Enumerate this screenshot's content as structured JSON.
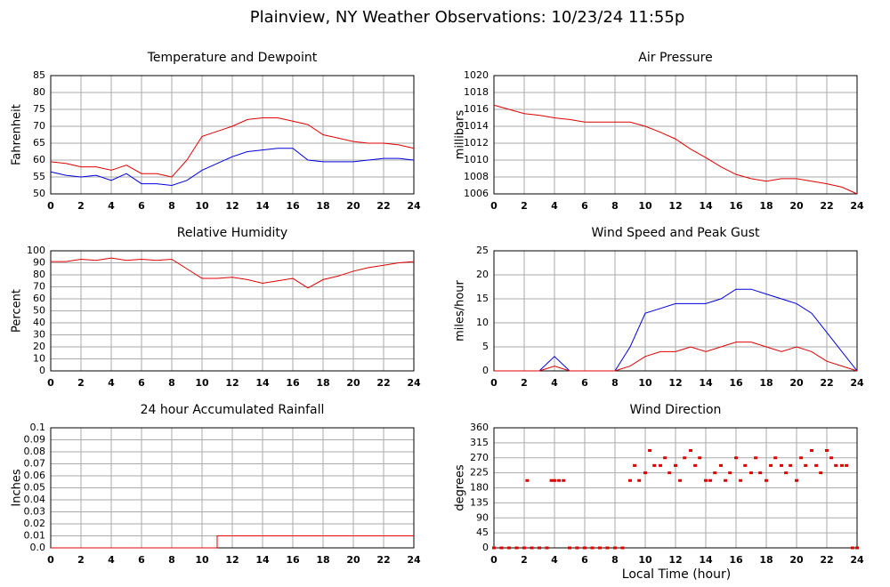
{
  "title": "Plainview, NY Weather Observations: 10/23/24 11:55p",
  "x_label": "Local Time (hour)",
  "chart_data": [
    {
      "type": "line",
      "title": "Temperature and Dewpoint",
      "y_label": "Fahrenheit",
      "grid": true,
      "x": [
        0,
        1,
        2,
        3,
        4,
        5,
        6,
        7,
        8,
        9,
        10,
        11,
        12,
        13,
        14,
        15,
        16,
        17,
        18,
        19,
        20,
        21,
        22,
        23,
        24
      ],
      "series": [
        {
          "color": "#e00000",
          "values": [
            59.5,
            59,
            58,
            58,
            57,
            58.5,
            56,
            56,
            55,
            60,
            67,
            68.5,
            70,
            72,
            72.5,
            72.5,
            71.5,
            70.5,
            67.5,
            66.5,
            65.5,
            65,
            65,
            64.5,
            63.5
          ]
        },
        {
          "color": "#0000e0",
          "values": [
            56.5,
            55.5,
            55,
            55.5,
            54,
            56,
            53,
            53,
            52.5,
            54,
            57,
            59,
            61,
            62.5,
            63,
            63.5,
            63.5,
            60,
            59.5,
            59.5,
            59.5,
            60,
            60.5,
            60.5,
            60
          ]
        }
      ],
      "xlim": [
        0,
        24
      ],
      "xticks": [
        0,
        2,
        4,
        6,
        8,
        10,
        12,
        14,
        16,
        18,
        20,
        22,
        24
      ],
      "ylim": [
        50,
        85
      ],
      "yticks": [
        50,
        55,
        60,
        65,
        70,
        75,
        80,
        85
      ]
    },
    {
      "type": "line",
      "title": "Air Pressure",
      "y_label": "millibars",
      "grid": true,
      "x": [
        0,
        1,
        2,
        3,
        4,
        5,
        6,
        7,
        8,
        9,
        10,
        11,
        12,
        13,
        14,
        15,
        16,
        17,
        18,
        19,
        20,
        21,
        22,
        23,
        24
      ],
      "series": [
        {
          "color": "#e00000",
          "values": [
            1016.5,
            1016,
            1015.5,
            1015.3,
            1015,
            1014.8,
            1014.5,
            1014.5,
            1014.5,
            1014.5,
            1014,
            1013.3,
            1012.5,
            1011.3,
            1010.3,
            1009.2,
            1008.3,
            1007.8,
            1007.5,
            1007.8,
            1007.8,
            1007.5,
            1007.2,
            1006.8,
            1006
          ]
        }
      ],
      "xlim": [
        0,
        24
      ],
      "xticks": [
        0,
        2,
        4,
        6,
        8,
        10,
        12,
        14,
        16,
        18,
        20,
        22,
        24
      ],
      "ylim": [
        1006,
        1020
      ],
      "yticks": [
        1006,
        1008,
        1010,
        1012,
        1014,
        1016,
        1018,
        1020
      ]
    },
    {
      "type": "line",
      "title": "Relative Humidity",
      "y_label": "Percent",
      "grid": true,
      "x": [
        0,
        1,
        2,
        3,
        4,
        5,
        6,
        7,
        8,
        9,
        10,
        11,
        12,
        13,
        14,
        15,
        16,
        17,
        18,
        19,
        20,
        21,
        22,
        23,
        24
      ],
      "series": [
        {
          "color": "#e00000",
          "values": [
            91,
            91,
            93,
            92,
            94,
            92,
            93,
            92,
            93,
            85,
            77,
            77,
            78,
            76,
            73,
            75,
            77,
            69,
            76,
            79,
            83,
            86,
            88,
            90,
            91
          ]
        }
      ],
      "xlim": [
        0,
        24
      ],
      "xticks": [
        0,
        2,
        4,
        6,
        8,
        10,
        12,
        14,
        16,
        18,
        20,
        22,
        24
      ],
      "ylim": [
        0,
        100
      ],
      "yticks": [
        0,
        10,
        20,
        30,
        40,
        50,
        60,
        70,
        80,
        90,
        100
      ]
    },
    {
      "type": "line",
      "title": "Wind Speed and Peak Gust",
      "y_label": "miles/hour",
      "grid": true,
      "x": [
        0,
        1,
        2,
        3,
        4,
        5,
        6,
        7,
        8,
        9,
        10,
        11,
        12,
        13,
        14,
        15,
        16,
        17,
        18,
        19,
        20,
        21,
        22,
        23,
        24
      ],
      "series": [
        {
          "color": "#0000e0",
          "values": [
            0,
            0,
            0,
            0,
            3,
            0,
            0,
            0,
            0,
            5,
            12,
            13,
            14,
            14,
            14,
            15,
            17,
            17,
            16,
            15,
            14,
            12,
            8,
            4,
            0
          ]
        },
        {
          "color": "#e00000",
          "values": [
            0,
            0,
            0,
            0,
            1,
            0,
            0,
            0,
            0,
            1,
            3,
            4,
            4,
            5,
            4,
            5,
            6,
            6,
            5,
            4,
            5,
            4,
            2,
            1,
            0
          ]
        }
      ],
      "xlim": [
        0,
        24
      ],
      "xticks": [
        0,
        2,
        4,
        6,
        8,
        10,
        12,
        14,
        16,
        18,
        20,
        22,
        24
      ],
      "ylim": [
        0,
        25
      ],
      "yticks": [
        0,
        5,
        10,
        15,
        20,
        25
      ]
    },
    {
      "type": "line",
      "title": "24 hour Accumulated Rainfall",
      "y_label": "Inches",
      "grid": true,
      "x": [
        0,
        11,
        11,
        24
      ],
      "series": [
        {
          "color": "#e00000",
          "values": [
            0,
            0,
            0.01,
            0.01
          ]
        }
      ],
      "xlim": [
        0,
        24
      ],
      "xticks": [
        0,
        2,
        4,
        6,
        8,
        10,
        12,
        14,
        16,
        18,
        20,
        22,
        24
      ],
      "ylim": [
        0,
        0.1
      ],
      "yticks": [
        {
          "value": 0,
          "label": "0.0"
        },
        0.01,
        0.02,
        0.03,
        0.04,
        0.05,
        0.06,
        0.07,
        0.08,
        0.09,
        0.1
      ]
    },
    {
      "type": "scatter",
      "title": "Wind Direction",
      "y_label": "degrees",
      "grid": true,
      "x": [
        0,
        0.5,
        1,
        1.5,
        2,
        2.2,
        2.5,
        3,
        3.5,
        3.8,
        4,
        4.3,
        4.6,
        5,
        5.5,
        6,
        6.5,
        7,
        7.5,
        8,
        8.5,
        9,
        9.3,
        9.6,
        10,
        10.3,
        10.6,
        11,
        11.3,
        11.6,
        12,
        12.3,
        12.6,
        13,
        13.3,
        13.6,
        14,
        14.3,
        14.6,
        15,
        15.3,
        15.6,
        16,
        16.3,
        16.6,
        17,
        17.3,
        17.6,
        18,
        18.3,
        18.6,
        19,
        19.3,
        19.6,
        20,
        20.3,
        20.6,
        21,
        21.3,
        21.6,
        22,
        22.3,
        22.6,
        23,
        23.3,
        23.7,
        24
      ],
      "series": [
        {
          "color": "#e00000",
          "values": [
            0,
            0,
            0,
            0,
            0,
            202,
            0,
            0,
            0,
            202,
            202,
            202,
            202,
            0,
            0,
            0,
            0,
            0,
            0,
            0,
            0,
            202,
            247,
            202,
            225,
            292,
            247,
            247,
            270,
            225,
            247,
            202,
            270,
            292,
            247,
            270,
            202,
            202,
            225,
            247,
            202,
            225,
            270,
            202,
            247,
            225,
            270,
            225,
            202,
            247,
            270,
            247,
            225,
            247,
            202,
            270,
            247,
            292,
            247,
            225,
            292,
            270,
            247,
            247,
            247,
            0,
            0
          ]
        }
      ],
      "xlim": [
        0,
        24
      ],
      "xticks": [
        0,
        2,
        4,
        6,
        8,
        10,
        12,
        14,
        16,
        18,
        20,
        22,
        24
      ],
      "ylim": [
        0,
        360
      ],
      "yticks": [
        0,
        45,
        90,
        135,
        180,
        225,
        270,
        315,
        360
      ]
    }
  ]
}
